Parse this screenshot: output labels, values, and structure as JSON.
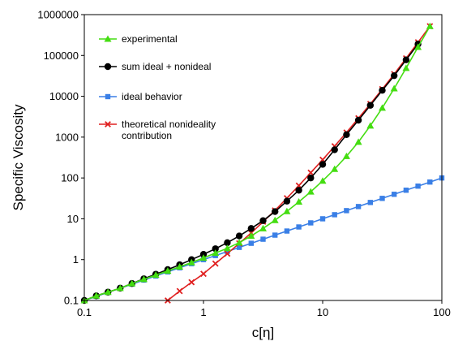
{
  "chart_data": {
    "type": "line",
    "xlabel": "c[η]",
    "ylabel": "Specific Viscosity",
    "xscale": "log",
    "yscale": "log",
    "xlim": [
      0.1,
      100
    ],
    "ylim": [
      0.1,
      1000000
    ],
    "xticks": [
      "0.1",
      "1",
      "10",
      "100"
    ],
    "yticks": [
      "0.1",
      "1",
      "10",
      "100",
      "1000",
      "10000",
      "100000",
      "1000000"
    ],
    "grid": false,
    "legend_position": "top-left",
    "series": [
      {
        "name": "experimental",
        "color": "#44dd11",
        "marker": "triangle",
        "x": [
          0.1,
          0.126,
          0.158,
          0.2,
          0.251,
          0.316,
          0.398,
          0.501,
          0.631,
          0.794,
          1.0,
          1.259,
          1.585,
          1.995,
          2.512,
          3.162,
          3.981,
          5.012,
          6.31,
          7.943,
          10.0,
          12.59,
          15.85,
          19.95,
          25.12,
          31.62,
          39.81,
          50.12,
          63.1,
          79.43
        ],
        "y": [
          0.1,
          0.13,
          0.16,
          0.2,
          0.26,
          0.33,
          0.42,
          0.53,
          0.67,
          0.85,
          1.1,
          1.45,
          1.9,
          2.6,
          3.8,
          5.8,
          9.2,
          15.2,
          26,
          46,
          85,
          165,
          340,
          760,
          1900,
          5200,
          15500,
          49000,
          160000,
          520000
        ]
      },
      {
        "name": "sum ideal + nonideal",
        "color": "#000000",
        "marker": "circle",
        "x": [
          0.1,
          0.126,
          0.158,
          0.2,
          0.251,
          0.316,
          0.398,
          0.501,
          0.631,
          0.794,
          1.0,
          1.259,
          1.585,
          1.995,
          2.512,
          3.162,
          3.981,
          5.012,
          6.31,
          7.943,
          10.0,
          12.59,
          15.85,
          19.95,
          25.12,
          31.62,
          39.81,
          50.12,
          63.1
        ],
        "y": [
          0.1,
          0.13,
          0.16,
          0.2,
          0.26,
          0.34,
          0.44,
          0.57,
          0.75,
          1.0,
          1.35,
          1.85,
          2.6,
          3.8,
          5.8,
          9.0,
          15,
          27,
          50,
          100,
          215,
          490,
          1150,
          2600,
          6000,
          14000,
          32000,
          78000,
          190000
        ]
      },
      {
        "name": "ideal behavior",
        "color": "#3a7fe6",
        "marker": "square",
        "x": [
          0.1,
          0.126,
          0.158,
          0.2,
          0.251,
          0.316,
          0.398,
          0.501,
          0.631,
          0.794,
          1.0,
          1.259,
          1.585,
          1.995,
          2.512,
          3.162,
          3.981,
          5.012,
          6.31,
          7.943,
          10.0,
          12.59,
          15.85,
          19.95,
          25.12,
          31.62,
          39.81,
          50.12,
          63.1,
          79.43,
          100.0
        ],
        "y": [
          0.1,
          0.126,
          0.158,
          0.2,
          0.251,
          0.316,
          0.398,
          0.501,
          0.631,
          0.794,
          1.0,
          1.259,
          1.585,
          1.995,
          2.512,
          3.162,
          3.981,
          5.012,
          6.31,
          7.943,
          10.0,
          12.59,
          15.85,
          19.95,
          25.12,
          31.62,
          39.81,
          50.12,
          63.1,
          79.43,
          100.0
        ]
      },
      {
        "name": "theoretical nonideality contribution",
        "color": "#e02020",
        "marker": "x",
        "x": [
          0.501,
          0.631,
          0.794,
          1.0,
          1.259,
          1.585,
          1.995,
          2.512,
          3.162,
          3.981,
          5.012,
          6.31,
          7.943,
          10.0,
          12.59,
          15.85,
          19.95,
          25.12,
          31.62,
          39.81,
          50.12,
          63.1,
          79.43
        ],
        "y": [
          0.1,
          0.17,
          0.28,
          0.45,
          0.8,
          1.4,
          2.5,
          4.5,
          8.5,
          16,
          32,
          65,
          135,
          280,
          600,
          1300,
          2900,
          6500,
          15000,
          35000,
          85000,
          210000,
          520000
        ]
      }
    ],
    "legend_order": [
      0,
      1,
      2,
      3
    ],
    "legend_labels": [
      [
        "experimental"
      ],
      [
        "sum ideal + nonideal"
      ],
      [
        "ideal behavior"
      ],
      [
        "theoretical nonideality",
        "contribution"
      ]
    ]
  }
}
